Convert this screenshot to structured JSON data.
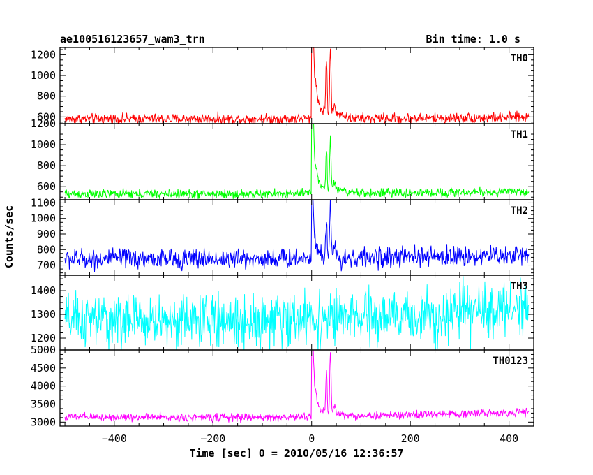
{
  "header": {
    "left": "ae100516123657_wam3_trn",
    "right": "Bin time: 1.0 s"
  },
  "chart_data": {
    "type": "line",
    "xlabel": "Time [sec] 0 = 2010/05/16 12:36:57",
    "ylabel": "Counts/sec",
    "xlim": [
      -510,
      450
    ],
    "xticks": [
      -400,
      -200,
      0,
      200,
      400
    ],
    "x_tick_labels": [
      "−400",
      "−200",
      "0",
      "200",
      "400"
    ],
    "x_range": [
      -500,
      440
    ],
    "bin_time": 1.0,
    "panels": [
      {
        "name": "TH0",
        "color": "#ff0000",
        "ylim": [
          535,
          1270
        ],
        "yticks": [
          600,
          800,
          1000,
          1200
        ],
        "series": {
          "baseline": [
            [
              -500,
              580
            ],
            [
              -100,
              580
            ],
            [
              0,
              585
            ],
            [
              200,
              585
            ],
            [
              440,
              595
            ]
          ],
          "noise": 25,
          "peaks": [
            {
              "t": 1,
              "v": 1270,
              "w": 2
            },
            {
              "t": 3,
              "v": 1200,
              "w": 3
            },
            {
              "t": 8,
              "v": 880,
              "w": 4
            },
            {
              "t": 15,
              "v": 720,
              "w": 5
            },
            {
              "t": 24,
              "v": 660,
              "w": 4
            },
            {
              "t": 30,
              "v": 1180,
              "w": 2
            },
            {
              "t": 38,
              "v": 1270,
              "w": 2
            },
            {
              "t": 46,
              "v": 700,
              "w": 4
            },
            {
              "t": 60,
              "v": 640,
              "w": 8
            }
          ]
        }
      },
      {
        "name": "TH1",
        "color": "#00ff00",
        "ylim": [
          475,
          1200
        ],
        "yticks": [
          600,
          800,
          1000,
          1200
        ],
        "series": {
          "baseline": [
            [
              -500,
              530
            ],
            [
              -100,
              530
            ],
            [
              0,
              535
            ],
            [
              200,
              540
            ],
            [
              440,
              550
            ]
          ],
          "noise": 22,
          "peaks": [
            {
              "t": 1,
              "v": 1200,
              "w": 2
            },
            {
              "t": 3,
              "v": 1100,
              "w": 3
            },
            {
              "t": 8,
              "v": 760,
              "w": 4
            },
            {
              "t": 15,
              "v": 640,
              "w": 5
            },
            {
              "t": 24,
              "v": 600,
              "w": 4
            },
            {
              "t": 30,
              "v": 950,
              "w": 2
            },
            {
              "t": 38,
              "v": 1080,
              "w": 2
            },
            {
              "t": 46,
              "v": 640,
              "w": 4
            },
            {
              "t": 60,
              "v": 590,
              "w": 8
            }
          ]
        }
      },
      {
        "name": "TH2",
        "color": "#0000ff",
        "ylim": [
          635,
          1120
        ],
        "yticks": [
          700,
          800,
          900,
          1000,
          1100
        ],
        "series": {
          "baseline": [
            [
              -500,
              740
            ],
            [
              -100,
              740
            ],
            [
              0,
              745
            ],
            [
              200,
              750
            ],
            [
              440,
              765
            ]
          ],
          "noise": 32,
          "peaks": [
            {
              "t": 1,
              "v": 1100,
              "w": 2
            },
            {
              "t": 3,
              "v": 1000,
              "w": 3
            },
            {
              "t": 8,
              "v": 830,
              "w": 4
            },
            {
              "t": 15,
              "v": 780,
              "w": 5
            },
            {
              "t": 30,
              "v": 1020,
              "w": 2
            },
            {
              "t": 38,
              "v": 1110,
              "w": 2
            },
            {
              "t": 46,
              "v": 800,
              "w": 4
            }
          ]
        }
      },
      {
        "name": "TH3",
        "color": "#00ffff",
        "ylim": [
          1150,
          1465
        ],
        "yticks": [
          1200,
          1300,
          1400
        ],
        "series": {
          "baseline": [
            [
              -500,
              1275
            ],
            [
              -100,
              1272
            ],
            [
              0,
              1280
            ],
            [
              200,
              1290
            ],
            [
              300,
              1305
            ],
            [
              440,
              1335
            ]
          ],
          "noise": 55,
          "peaks": []
        }
      },
      {
        "name": "TH0123",
        "color": "#ff00ff",
        "ylim": [
          2890,
          5000
        ],
        "yticks": [
          3000,
          3500,
          4000,
          4500,
          5000
        ],
        "series": {
          "baseline": [
            [
              -500,
              3140
            ],
            [
              -100,
              3130
            ],
            [
              0,
              3150
            ],
            [
              200,
              3200
            ],
            [
              440,
              3280
            ]
          ],
          "noise": 55,
          "peaks": [
            {
              "t": 1,
              "v": 4750,
              "w": 2
            },
            {
              "t": 3,
              "v": 4500,
              "w": 3
            },
            {
              "t": 8,
              "v": 3700,
              "w": 4
            },
            {
              "t": 15,
              "v": 3400,
              "w": 5
            },
            {
              "t": 24,
              "v": 3350,
              "w": 4
            },
            {
              "t": 30,
              "v": 4350,
              "w": 2
            },
            {
              "t": 38,
              "v": 5000,
              "w": 2
            },
            {
              "t": 46,
              "v": 3450,
              "w": 4
            },
            {
              "t": 60,
              "v": 3250,
              "w": 8
            }
          ]
        }
      }
    ]
  }
}
